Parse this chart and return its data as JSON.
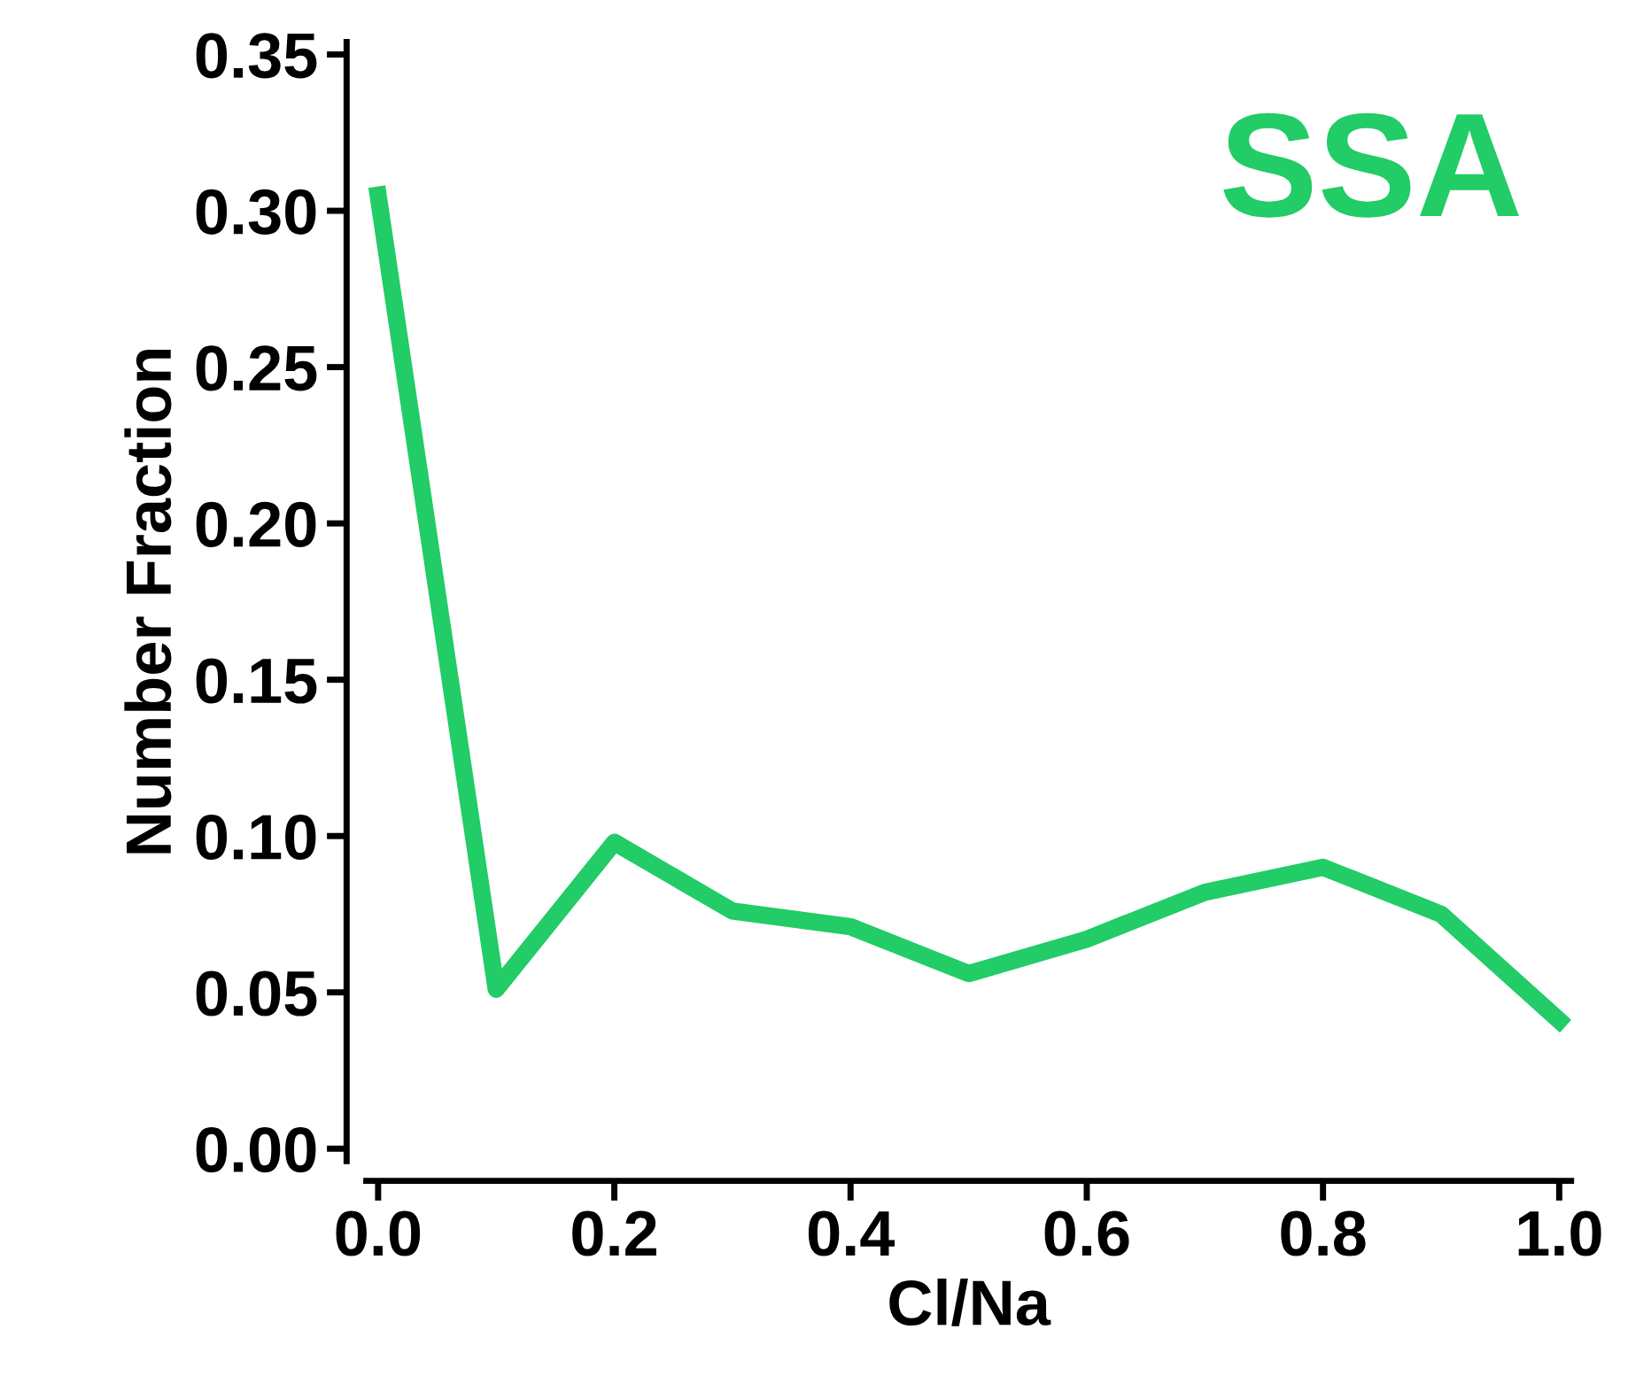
{
  "chart_data": {
    "type": "line",
    "xlabel": "Cl/Na",
    "ylabel": "Number Fraction",
    "x": [
      0.0,
      0.1,
      0.2,
      0.3,
      0.4,
      0.5,
      0.6,
      0.7,
      0.8,
      0.9,
      1.0
    ],
    "series": [
      {
        "color": "#22cc66",
        "values": [
          0.305,
          0.051,
          0.098,
          0.076,
          0.071,
          0.056,
          0.067,
          0.082,
          0.09,
          0.075,
          0.041
        ]
      }
    ],
    "annotations": [
      "SSA"
    ],
    "xlim": [
      -0.01,
      1.01
    ],
    "xticks": [
      {
        "value": 0,
        "label": "0.0"
      },
      {
        "value": 0.2,
        "label": "0.2"
      },
      {
        "value": 0.4,
        "label": "0.4"
      },
      {
        "value": 0.6,
        "label": "0.6"
      },
      {
        "value": 0.8,
        "label": "0.8"
      },
      {
        "value": 1.0,
        "label": "1.0"
      }
    ],
    "ylim": [
      -0.004,
      0.354
    ],
    "yticks": [
      {
        "value": 0,
        "label": "0.00"
      },
      {
        "value": 0.05,
        "label": "0.05"
      },
      {
        "value": 0.1,
        "label": "0.10"
      },
      {
        "value": 0.15,
        "label": "0.15"
      },
      {
        "value": 0.2,
        "label": "0.20"
      },
      {
        "value": 0.25,
        "label": "0.25"
      },
      {
        "value": 0.3,
        "label": "0.30"
      },
      {
        "value": 0.35,
        "label": "0.35"
      }
    ],
    "grid": false,
    "legend": false,
    "marker": "none",
    "line_style": "solid"
  }
}
